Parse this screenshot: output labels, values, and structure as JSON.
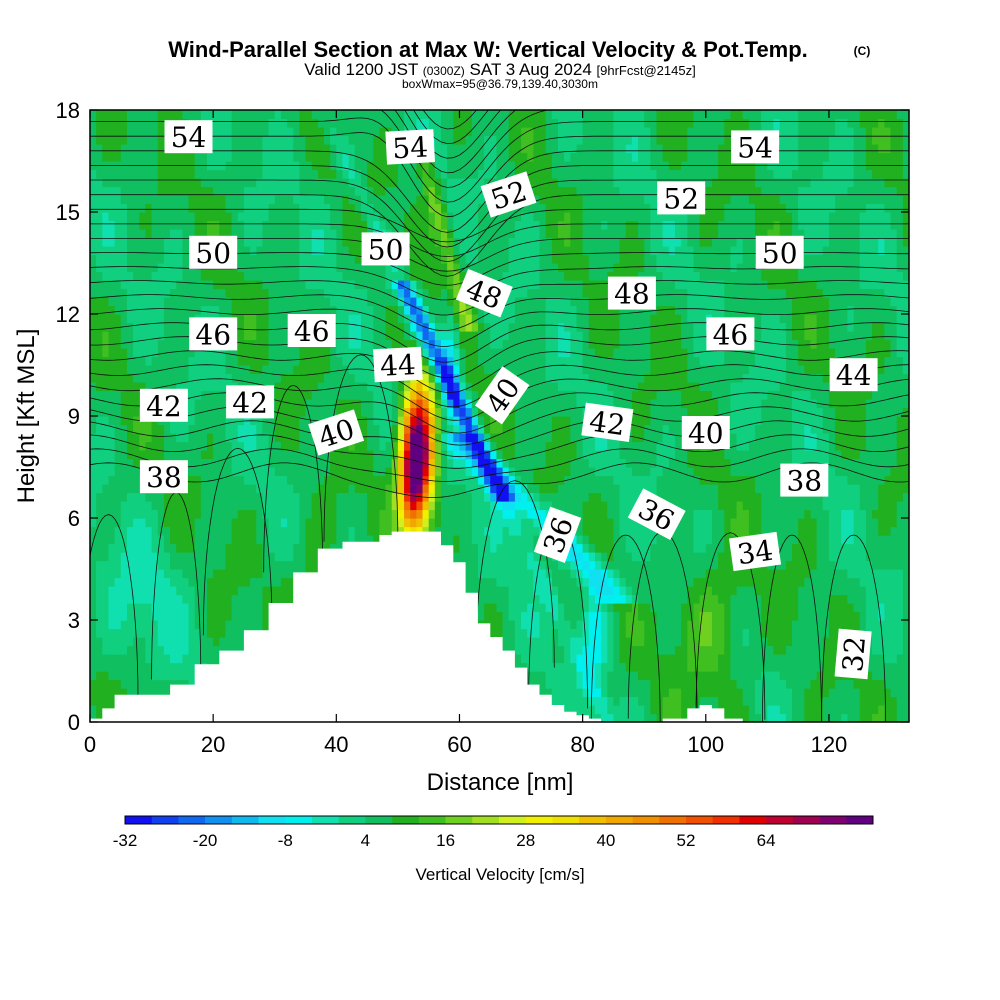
{
  "chart_data": {
    "type": "heatmap",
    "title": "Wind-Parallel Section at Max W: Vertical Velocity & Pot.Temp.",
    "title_mark": "(C)",
    "subtitle_1_pre": "Valid 1200 JST",
    "subtitle_1_small": "(0300Z)",
    "subtitle_1_main": "SAT 3 Aug 2024",
    "subtitle_1_tail": "[9hrFcst@2145z]",
    "subtitle_2": "boxWmax=95@36.79,139.40,3030m",
    "xlabel": "Distance [nm]",
    "ylabel": "Height [Kft MSL]",
    "xlim": [
      0,
      133
    ],
    "ylim": [
      0,
      18
    ],
    "xticks": [
      "0",
      "20",
      "40",
      "60",
      "80",
      "100",
      "120"
    ],
    "xtick_values": [
      0,
      20,
      40,
      60,
      80,
      100,
      120
    ],
    "yticks": [
      "0",
      "3",
      "6",
      "9",
      "12",
      "15",
      "18"
    ],
    "ytick_values": [
      0,
      3,
      6,
      9,
      12,
      15,
      18
    ],
    "colorbar": {
      "label": "Vertical Velocity [cm/s]",
      "tick_labels": [
        "-32",
        "-20",
        "-8",
        "4",
        "16",
        "28",
        "40",
        "52",
        "64"
      ],
      "tick_values": [
        -32,
        -20,
        -8,
        4,
        16,
        28,
        40,
        52,
        64
      ],
      "bin_min": -32,
      "bin_width": 4,
      "colors": [
        "#1010f0",
        "#1040f0",
        "#1068f0",
        "#1090f0",
        "#10b8f0",
        "#10e0f0",
        "#00f0f0",
        "#10e0b0",
        "#10d080",
        "#10c060",
        "#20b020",
        "#40c020",
        "#70d020",
        "#a0e020",
        "#d0f020",
        "#f0f000",
        "#f0e000",
        "#f0c000",
        "#f0a800",
        "#f09000",
        "#f07000",
        "#f05000",
        "#f03000",
        "#e00000",
        "#c00030",
        "#a00050",
        "#800070",
        "#600080"
      ]
    },
    "wind_w_field": {
      "units": "cm/s",
      "background": 6,
      "features": [
        {
          "kind": "updraft",
          "x": 53.5,
          "y": 8.2,
          "peak": 68
        },
        {
          "kind": "updraft",
          "x": 52.5,
          "y": 7.0,
          "peak": 44
        },
        {
          "kind": "updraft-plume",
          "x_range": [
            59,
            73
          ],
          "y_range": [
            11.5,
            17
          ],
          "peak": 18
        },
        {
          "kind": "downdraft-band",
          "x_range": [
            57,
            95
          ],
          "y_range": [
            3.5,
            13
          ],
          "peak": -30
        },
        {
          "kind": "weak-downdraft",
          "x": 82,
          "y": 2.5,
          "peak": -9
        },
        {
          "kind": "weak-updraft",
          "x": 100,
          "y": 2.8,
          "peak": 18
        }
      ]
    },
    "terrain": {
      "units": "Kft",
      "x": [
        0,
        2,
        4,
        8,
        13,
        17,
        21,
        25,
        29,
        33,
        37,
        41,
        45,
        47,
        49,
        51,
        53,
        55,
        57,
        59,
        61,
        63,
        65,
        67,
        69,
        71,
        73,
        75,
        77,
        79,
        81,
        83,
        88,
        93,
        97,
        99,
        101,
        103,
        106,
        110,
        115,
        120,
        125,
        130,
        133
      ],
      "height": [
        0.1,
        0.4,
        0.8,
        0.8,
        1.1,
        1.7,
        2.1,
        2.7,
        3.5,
        4.4,
        5.1,
        5.3,
        5.3,
        5.5,
        5.6,
        5.6,
        5.6,
        5.6,
        5.2,
        4.7,
        3.8,
        2.9,
        2.5,
        2.1,
        1.6,
        1.1,
        0.8,
        0.5,
        0.3,
        0.2,
        0.1,
        0.0,
        0.0,
        0.1,
        0.4,
        0.5,
        0.4,
        0.1,
        0.0,
        0.0,
        0.0,
        0.0,
        0.0,
        0.0,
        0.0
      ]
    },
    "isentropes": {
      "units": "theta (contour level)",
      "levels": [
        30,
        31,
        32,
        33,
        34,
        35,
        36,
        37,
        38,
        39,
        40,
        41,
        42,
        43,
        44,
        45,
        46,
        47,
        48,
        49,
        50,
        51,
        52,
        53,
        54,
        55
      ],
      "label_levels": [
        {
          "text": "54",
          "x": 16,
          "y": 17.2,
          "angle": 0
        },
        {
          "text": "54",
          "x": 52,
          "y": 16.9,
          "angle": -3
        },
        {
          "text": "54",
          "x": 108,
          "y": 16.9,
          "angle": 0
        },
        {
          "text": "52",
          "x": 68,
          "y": 15.5,
          "angle": -18
        },
        {
          "text": "52",
          "x": 96,
          "y": 15.4,
          "angle": 0
        },
        {
          "text": "50",
          "x": 20,
          "y": 13.8,
          "angle": 0
        },
        {
          "text": "50",
          "x": 48,
          "y": 13.9,
          "angle": 0
        },
        {
          "text": "50",
          "x": 112,
          "y": 13.8,
          "angle": 0
        },
        {
          "text": "48",
          "x": 64,
          "y": 12.6,
          "angle": 22
        },
        {
          "text": "48",
          "x": 88,
          "y": 12.6,
          "angle": 0
        },
        {
          "text": "46",
          "x": 20,
          "y": 11.4,
          "angle": 0
        },
        {
          "text": "46",
          "x": 36,
          "y": 11.5,
          "angle": 0
        },
        {
          "text": "46",
          "x": 104,
          "y": 11.4,
          "angle": 0
        },
        {
          "text": "44",
          "x": 50,
          "y": 10.5,
          "angle": -3
        },
        {
          "text": "44",
          "x": 124,
          "y": 10.2,
          "angle": 0
        },
        {
          "text": "42",
          "x": 12,
          "y": 9.3,
          "angle": 0
        },
        {
          "text": "42",
          "x": 26,
          "y": 9.4,
          "angle": 0
        },
        {
          "text": "42",
          "x": 84,
          "y": 8.8,
          "angle": 8
        },
        {
          "text": "40",
          "x": 40,
          "y": 8.5,
          "angle": -18
        },
        {
          "text": "40",
          "x": 67,
          "y": 9.6,
          "angle": -55
        },
        {
          "text": "40",
          "x": 100,
          "y": 8.5,
          "angle": 0
        },
        {
          "text": "38",
          "x": 12,
          "y": 7.2,
          "angle": 0
        },
        {
          "text": "38",
          "x": 116,
          "y": 7.1,
          "angle": 0
        },
        {
          "text": "36",
          "x": 92,
          "y": 6.1,
          "angle": 28
        },
        {
          "text": "36",
          "x": 76,
          "y": 5.5,
          "angle": -70
        },
        {
          "text": "34",
          "x": 108,
          "y": 5.0,
          "angle": -8
        },
        {
          "text": "32",
          "x": 124,
          "y": 2.0,
          "angle": -85
        }
      ]
    }
  }
}
